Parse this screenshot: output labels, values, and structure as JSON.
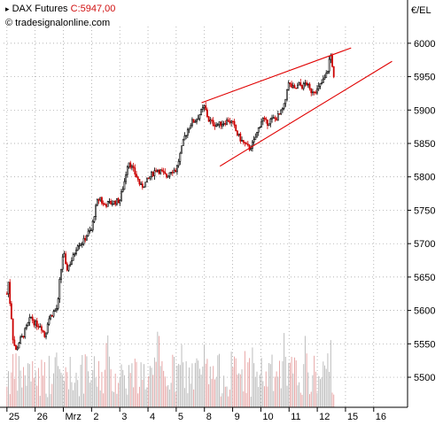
{
  "header": {
    "instrument": "DAX Futures",
    "close_label": "C:",
    "close_value": "5947,00",
    "website": "tradesignalonline.com",
    "currency": "€/EL"
  },
  "colors": {
    "background": "#ffffff",
    "grid": "#9a9a9a",
    "candle_up": "#000000",
    "candle_down": "#cc0000",
    "volume_up": "#bdbdbd",
    "volume_down": "#e8a8a8",
    "trendline": "#e00000",
    "price_label": "#d01010"
  },
  "chart_data": {
    "type": "candlestick",
    "title": "DAX Futures",
    "ylabel": "€/EL",
    "ylim": [
      5455,
      6025
    ],
    "y_ticks": [
      5500,
      5550,
      5600,
      5650,
      5700,
      5750,
      5800,
      5850,
      5900,
      5950,
      6000
    ],
    "x_ticks": [
      {
        "label": "25",
        "day": 0
      },
      {
        "label": "26",
        "day": 1
      },
      {
        "label": "Mrz",
        "day": 2
      },
      {
        "label": "2",
        "day": 3
      },
      {
        "label": "3",
        "day": 4
      },
      {
        "label": "4",
        "day": 5
      },
      {
        "label": "5",
        "day": 6
      },
      {
        "label": "8",
        "day": 7
      },
      {
        "label": "9",
        "day": 8
      },
      {
        "label": "10",
        "day": 9
      },
      {
        "label": "11",
        "day": 10
      },
      {
        "label": "12",
        "day": 11
      },
      {
        "label": "15",
        "day": 12
      },
      {
        "label": "16",
        "day": 13
      }
    ],
    "xlim": [
      -0.12,
      14.2
    ],
    "grid": true,
    "close": 5947.0,
    "price_path": [
      [
        0.0,
        5625
      ],
      [
        0.04,
        5650
      ],
      [
        0.1,
        5615
      ],
      [
        0.16,
        5590
      ],
      [
        0.22,
        5555
      ],
      [
        0.32,
        5540
      ],
      [
        0.45,
        5555
      ],
      [
        0.55,
        5560
      ],
      [
        0.7,
        5575
      ],
      [
        0.85,
        5590
      ],
      [
        1.0,
        5580
      ],
      [
        1.2,
        5578
      ],
      [
        1.35,
        5560
      ],
      [
        1.45,
        5585
      ],
      [
        1.6,
        5595
      ],
      [
        1.8,
        5605
      ],
      [
        1.86,
        5640
      ],
      [
        1.93,
        5665
      ],
      [
        2.0,
        5690
      ],
      [
        2.1,
        5660
      ],
      [
        2.2,
        5668
      ],
      [
        2.35,
        5680
      ],
      [
        2.5,
        5700
      ],
      [
        2.7,
        5702
      ],
      [
        2.85,
        5715
      ],
      [
        3.0,
        5720
      ],
      [
        3.1,
        5745
      ],
      [
        3.2,
        5762
      ],
      [
        3.3,
        5770
      ],
      [
        3.4,
        5758
      ],
      [
        3.6,
        5760
      ],
      [
        3.8,
        5762
      ],
      [
        4.0,
        5765
      ],
      [
        4.15,
        5790
      ],
      [
        4.3,
        5825
      ],
      [
        4.45,
        5812
      ],
      [
        4.6,
        5800
      ],
      [
        4.75,
        5785
      ],
      [
        4.9,
        5790
      ],
      [
        5.1,
        5802
      ],
      [
        5.3,
        5812
      ],
      [
        5.45,
        5808
      ],
      [
        5.65,
        5800
      ],
      [
        5.8,
        5810
      ],
      [
        6.0,
        5810
      ],
      [
        6.15,
        5835
      ],
      [
        6.3,
        5860
      ],
      [
        6.45,
        5875
      ],
      [
        6.55,
        5882
      ],
      [
        6.7,
        5885
      ],
      [
        6.85,
        5895
      ],
      [
        7.0,
        5905
      ],
      [
        7.15,
        5885
      ],
      [
        7.3,
        5880
      ],
      [
        7.5,
        5878
      ],
      [
        7.7,
        5882
      ],
      [
        7.85,
        5885
      ],
      [
        8.0,
        5880
      ],
      [
        8.15,
        5865
      ],
      [
        8.3,
        5855
      ],
      [
        8.5,
        5845
      ],
      [
        8.6,
        5843
      ],
      [
        8.75,
        5852
      ],
      [
        8.9,
        5870
      ],
      [
        9.05,
        5888
      ],
      [
        9.2,
        5880
      ],
      [
        9.35,
        5885
      ],
      [
        9.55,
        5888
      ],
      [
        9.7,
        5895
      ],
      [
        9.85,
        5908
      ],
      [
        9.95,
        5940
      ],
      [
        10.1,
        5935
      ],
      [
        10.2,
        5930
      ],
      [
        10.35,
        5938
      ],
      [
        10.5,
        5935
      ],
      [
        10.6,
        5942
      ],
      [
        10.75,
        5928
      ],
      [
        10.85,
        5930
      ],
      [
        11.0,
        5930
      ],
      [
        11.15,
        5940
      ],
      [
        11.3,
        5950
      ],
      [
        11.4,
        5965
      ],
      [
        11.45,
        5985
      ],
      [
        11.5,
        5978
      ],
      [
        11.55,
        5962
      ],
      [
        11.6,
        5940
      ]
    ],
    "volume_ylim": [
      0,
      1
    ],
    "trendlines": [
      {
        "name": "upper",
        "points": [
          [
            6.9,
            5911
          ],
          [
            12.2,
            5993
          ]
        ]
      },
      {
        "name": "lower",
        "points": [
          [
            7.55,
            5816
          ],
          [
            13.65,
            5973
          ]
        ]
      }
    ]
  }
}
